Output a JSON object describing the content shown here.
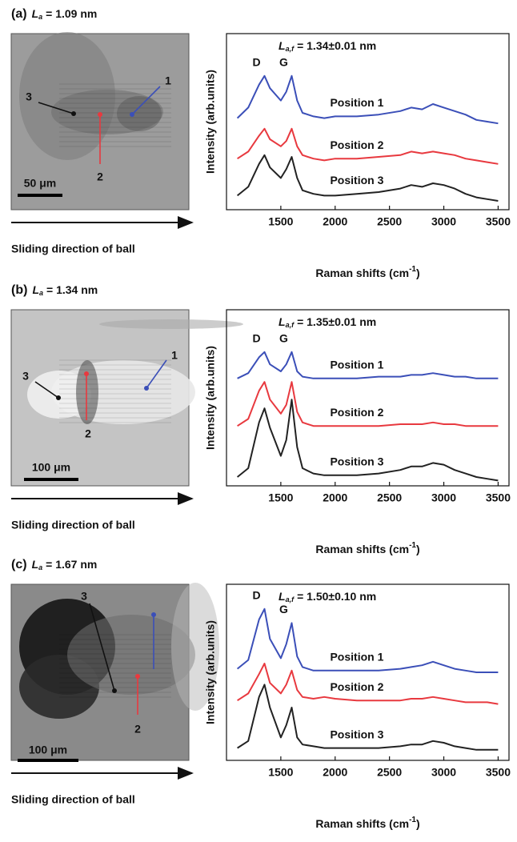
{
  "panels": [
    {
      "label": "(a)",
      "la_symbol": "L",
      "la_sub": "a",
      "la_value": "= 1.09 nm",
      "image": {
        "markers": [
          "1",
          "2",
          "3"
        ],
        "scale_bar": "50 μm"
      },
      "caption": "Sliding direction of ball"
    },
    {
      "label": "(b)",
      "la_symbol": "L",
      "la_sub": "a",
      "la_value": "= 1.34 nm",
      "image": {
        "markers": [
          "1",
          "2",
          "3"
        ],
        "scale_bar": "100 μm"
      },
      "caption": "Sliding direction of ball"
    },
    {
      "label": "(c)",
      "la_symbol": "L",
      "la_sub": "a",
      "la_value": "= 1.67 nm",
      "image": {
        "markers": [
          "2",
          "3"
        ],
        "scale_bar": "100 μm"
      },
      "caption": "Sliding direction of ball"
    }
  ],
  "chart_data": [
    {
      "type": "line",
      "annotation": {
        "symbol": "L",
        "subscript": "a,f",
        "text": "= 1.34±0.01 nm"
      },
      "peaks": [
        "D",
        "G"
      ],
      "ylabel": "Intensity (arb.units)",
      "xlabel": "Raman shifts (cm",
      "xlabel_sup": "-1",
      "xlabel_end": ")",
      "xlim": [
        1000,
        3600
      ],
      "xticks": [
        1500,
        2000,
        2500,
        3000,
        3500
      ],
      "ylim": [
        0,
        10
      ],
      "x": [
        1100,
        1200,
        1300,
        1350,
        1400,
        1500,
        1550,
        1600,
        1650,
        1700,
        1800,
        1900,
        2000,
        2200,
        2400,
        2600,
        2700,
        2800,
        2900,
        3000,
        3100,
        3200,
        3300,
        3400,
        3500
      ],
      "series": [
        {
          "name": "Position 1",
          "color": "#3b4fb8",
          "values": [
            5.2,
            5.8,
            7.1,
            7.6,
            6.9,
            6.2,
            6.7,
            7.6,
            6.2,
            5.5,
            5.3,
            5.2,
            5.3,
            5.3,
            5.4,
            5.6,
            5.8,
            5.7,
            6.0,
            5.8,
            5.6,
            5.4,
            5.1,
            5.0,
            4.9
          ]
        },
        {
          "name": "Position 2",
          "color": "#e8393f",
          "values": [
            2.9,
            3.3,
            4.2,
            4.6,
            4.0,
            3.6,
            3.9,
            4.6,
            3.6,
            3.1,
            2.9,
            2.8,
            2.9,
            2.9,
            3.0,
            3.1,
            3.3,
            3.2,
            3.3,
            3.2,
            3.1,
            2.9,
            2.8,
            2.7,
            2.6
          ]
        },
        {
          "name": "Position 3",
          "color": "#222222",
          "values": [
            0.8,
            1.3,
            2.6,
            3.1,
            2.4,
            1.8,
            2.3,
            3.0,
            1.8,
            1.1,
            0.9,
            0.8,
            0.8,
            0.9,
            1.0,
            1.2,
            1.4,
            1.3,
            1.5,
            1.4,
            1.2,
            0.9,
            0.7,
            0.6,
            0.5
          ]
        }
      ]
    },
    {
      "type": "line",
      "annotation": {
        "symbol": "L",
        "subscript": "a,f",
        "text": "= 1.35±0.01 nm"
      },
      "peaks": [
        "D",
        "G"
      ],
      "ylabel": "Intensity (arb.units)",
      "xlabel": "Raman shifts (cm",
      "xlabel_sup": "-1",
      "xlabel_end": ")",
      "xlim": [
        1000,
        3600
      ],
      "xticks": [
        1500,
        2000,
        2500,
        3000,
        3500
      ],
      "ylim": [
        0,
        10
      ],
      "x": [
        1100,
        1200,
        1300,
        1350,
        1400,
        1500,
        1550,
        1600,
        1650,
        1700,
        1800,
        1900,
        2000,
        2200,
        2400,
        2600,
        2700,
        2800,
        2900,
        3000,
        3100,
        3200,
        3300,
        3400,
        3500
      ],
      "series": [
        {
          "name": "Position 1",
          "color": "#3b4fb8",
          "values": [
            6.1,
            6.4,
            7.3,
            7.6,
            6.9,
            6.5,
            6.9,
            7.6,
            6.5,
            6.2,
            6.1,
            6.1,
            6.1,
            6.1,
            6.2,
            6.2,
            6.3,
            6.3,
            6.4,
            6.3,
            6.2,
            6.2,
            6.1,
            6.1,
            6.1
          ]
        },
        {
          "name": "Position 2",
          "color": "#e8393f",
          "values": [
            3.4,
            3.8,
            5.4,
            5.9,
            4.9,
            4.1,
            4.6,
            5.9,
            4.2,
            3.6,
            3.4,
            3.4,
            3.4,
            3.4,
            3.4,
            3.5,
            3.5,
            3.5,
            3.6,
            3.5,
            3.5,
            3.4,
            3.4,
            3.4,
            3.4
          ]
        },
        {
          "name": "Position 3",
          "color": "#222222",
          "values": [
            0.5,
            1.0,
            3.6,
            4.4,
            3.3,
            1.7,
            2.6,
            4.9,
            2.2,
            1.0,
            0.7,
            0.6,
            0.6,
            0.6,
            0.7,
            0.9,
            1.1,
            1.1,
            1.3,
            1.2,
            0.9,
            0.7,
            0.5,
            0.4,
            0.3
          ]
        }
      ]
    },
    {
      "type": "line",
      "annotation": {
        "symbol": "L",
        "subscript": "a,f",
        "text": "= 1.50±0.10 nm"
      },
      "peaks": [
        "D",
        "G"
      ],
      "ylabel": "Intensity (arb.units)",
      "xlabel": "Raman shifts (cm",
      "xlabel_sup": "-1",
      "xlabel_end": ")",
      "xlim": [
        1000,
        3600
      ],
      "xticks": [
        1500,
        2000,
        2500,
        3000,
        3500
      ],
      "ylim": [
        0,
        10
      ],
      "x": [
        1100,
        1200,
        1300,
        1350,
        1400,
        1500,
        1550,
        1600,
        1650,
        1700,
        1800,
        1900,
        2000,
        2200,
        2400,
        2600,
        2700,
        2800,
        2900,
        3000,
        3100,
        3200,
        3300,
        3400,
        3500
      ],
      "series": [
        {
          "name": "Position 1",
          "color": "#3b4fb8",
          "values": [
            5.2,
            5.7,
            8.0,
            8.6,
            6.9,
            5.8,
            6.6,
            7.8,
            5.9,
            5.3,
            5.1,
            5.1,
            5.1,
            5.1,
            5.1,
            5.2,
            5.3,
            5.4,
            5.6,
            5.4,
            5.2,
            5.1,
            5.0,
            5.0,
            5.0
          ]
        },
        {
          "name": "Position 2",
          "color": "#e8393f",
          "values": [
            3.4,
            3.8,
            4.9,
            5.5,
            4.4,
            3.8,
            4.3,
            5.1,
            4.0,
            3.6,
            3.5,
            3.6,
            3.5,
            3.4,
            3.4,
            3.4,
            3.5,
            3.5,
            3.6,
            3.5,
            3.4,
            3.3,
            3.3,
            3.3,
            3.2
          ]
        },
        {
          "name": "Position 3",
          "color": "#222222",
          "values": [
            0.7,
            1.1,
            3.6,
            4.3,
            3.0,
            1.3,
            2.0,
            3.0,
            1.3,
            0.9,
            0.8,
            0.7,
            0.7,
            0.7,
            0.7,
            0.8,
            0.9,
            0.9,
            1.1,
            1.0,
            0.8,
            0.7,
            0.6,
            0.6,
            0.6
          ]
        }
      ]
    }
  ]
}
